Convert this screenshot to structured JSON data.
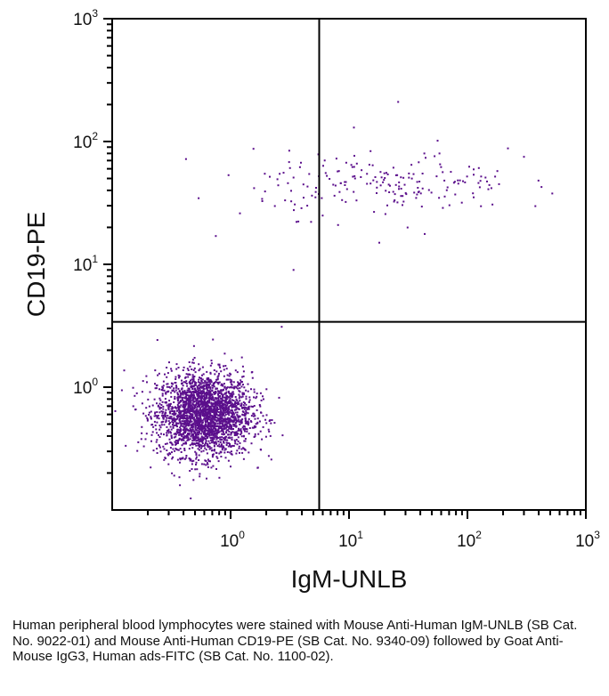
{
  "chart_data": {
    "type": "scatter",
    "title": "",
    "xlabel": "IgM-UNLB",
    "ylabel": "CD19-PE",
    "xscale": "log",
    "yscale": "log",
    "xlim": [
      0.1,
      1000
    ],
    "ylim": [
      0.1,
      1000
    ],
    "x_ticks": [
      {
        "base": "10",
        "exp": "0",
        "value": 1
      },
      {
        "base": "10",
        "exp": "1",
        "value": 10
      },
      {
        "base": "10",
        "exp": "2",
        "value": 100
      },
      {
        "base": "10",
        "exp": "3",
        "value": 1000
      }
    ],
    "y_ticks": [
      {
        "base": "10",
        "exp": "0",
        "value": 1
      },
      {
        "base": "10",
        "exp": "1",
        "value": 10
      },
      {
        "base": "10",
        "exp": "2",
        "value": 100
      },
      {
        "base": "10",
        "exp": "3",
        "value": 1000
      }
    ],
    "quadrant_gates": {
      "x": 5.6,
      "y": 3.4
    },
    "point_color": "#5b0f8c",
    "grid": false,
    "legend": "none",
    "populations": [
      {
        "x_center": 0.6,
        "y_center": 0.6,
        "count": 2600
      },
      {
        "x_center": 20,
        "y_center": 45,
        "count": 200
      }
    ],
    "outlier_points": [
      [
        3.4,
        9
      ],
      [
        2.7,
        3.1
      ],
      [
        0.42,
        72
      ],
      [
        1.2,
        26
      ],
      [
        26,
        210
      ],
      [
        11,
        130
      ],
      [
        300,
        75
      ],
      [
        0.75,
        17
      ],
      [
        18,
        15
      ],
      [
        220,
        88
      ]
    ]
  },
  "caption": "Human peripheral blood lymphocytes were stained with Mouse Anti-Human IgM-UNLB (SB Cat. No. 9022-01) and Mouse Anti-Human CD19-PE (SB Cat. No. 9340-09) followed by Goat Anti-Mouse IgG3, Human ads-FITC (SB Cat. No. 1100-02)."
}
